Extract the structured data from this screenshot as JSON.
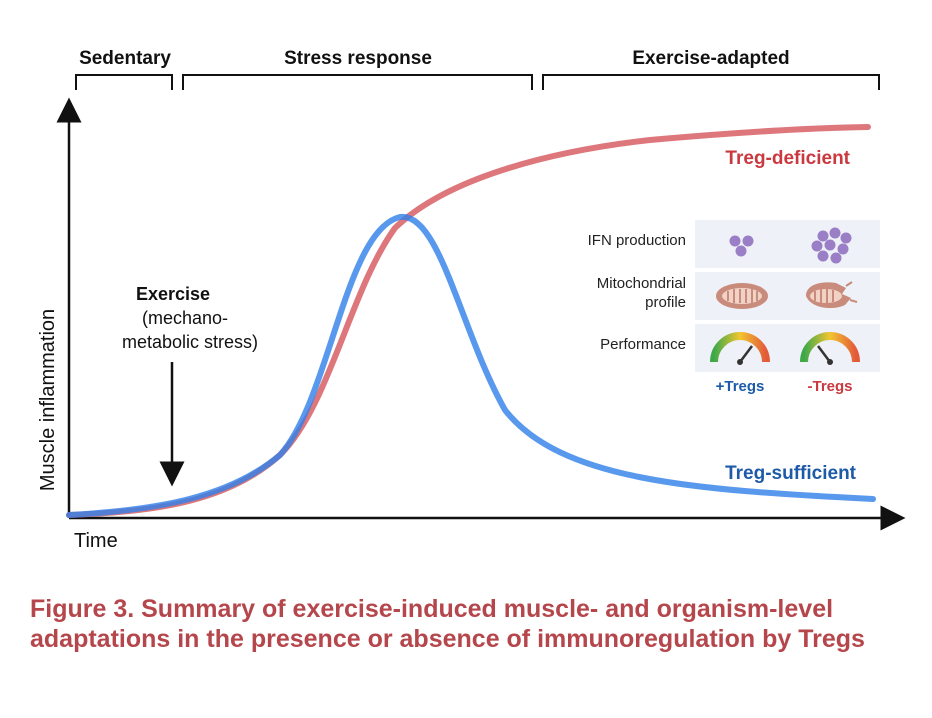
{
  "phases": {
    "sedentary": "Sedentary",
    "stress": "Stress response",
    "adapted": "Exercise-adapted"
  },
  "axes": {
    "y_label": "Muscle inflammation",
    "x_label": "Time"
  },
  "annotation": {
    "title": "Exercise",
    "line1": "(mechano-",
    "line2": "metabolic stress)"
  },
  "curves": {
    "deficient": {
      "label": "Treg-deficient",
      "color": "#d9686e"
    },
    "sufficient": {
      "label": "Treg-sufficient",
      "color": "#2f7fe9"
    }
  },
  "panel": {
    "rows": {
      "ifn": "IFN production",
      "mito1": "Mitochondrial",
      "mito2": "profile",
      "perf": "Performance"
    },
    "columns": {
      "plus": "+Tregs",
      "minus": "-Tregs"
    }
  },
  "caption": {
    "text": "Figure 3.  Summary of exercise-induced muscle- and organism-level adaptations in the presence or absence of immunoregulation by Tregs"
  },
  "colors": {
    "caption": "#b5464b",
    "deficient_label": "#c9393f",
    "sufficient_label": "#1d5aa8",
    "ifn_dot": "#9b7fc6",
    "mito": "#c98b7c",
    "panel_bg": "#eef1f7"
  }
}
